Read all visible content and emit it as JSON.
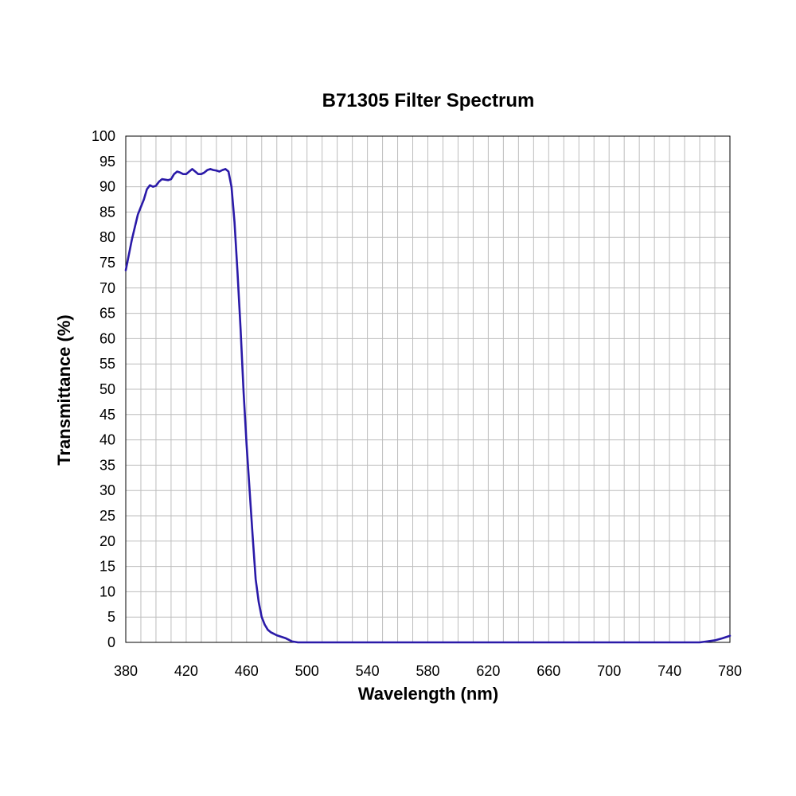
{
  "chart_data": {
    "type": "line",
    "title": "B71305 Filter  Spectrum",
    "xlabel": "Wavelength (nm)",
    "ylabel": "Transmittance (%)",
    "xlim": [
      380,
      780
    ],
    "ylim": [
      0,
      100
    ],
    "x_ticks": [
      380,
      420,
      460,
      500,
      540,
      580,
      620,
      660,
      700,
      740,
      780
    ],
    "y_ticks": [
      0,
      5,
      10,
      15,
      20,
      25,
      30,
      35,
      40,
      45,
      50,
      55,
      60,
      65,
      70,
      75,
      80,
      85,
      90,
      95,
      100
    ],
    "x_minor_step": 10,
    "grid": true,
    "line_color": "#2a1aa8",
    "series": [
      {
        "x": [
          380,
          382,
          384,
          386,
          388,
          390,
          392,
          394,
          396,
          398,
          400,
          402,
          404,
          406,
          408,
          410,
          412,
          414,
          416,
          418,
          420,
          422,
          424,
          426,
          428,
          430,
          432,
          434,
          436,
          438,
          440,
          442,
          444,
          446,
          448,
          450,
          452,
          454,
          456,
          458,
          460,
          462,
          464,
          466,
          468,
          470,
          472,
          474,
          476,
          478,
          480,
          482,
          484,
          486,
          488,
          490,
          492,
          494,
          496,
          498,
          500,
          502,
          505,
          510,
          515,
          520,
          525,
          530,
          535,
          540,
          560,
          600,
          640,
          680,
          695,
          700,
          705,
          710,
          720,
          740,
          760,
          765,
          770,
          775,
          780
        ],
        "y": [
          73.5,
          76.5,
          79.5,
          82.0,
          84.5,
          86.0,
          87.5,
          89.5,
          90.3,
          90.0,
          90.2,
          91.0,
          91.5,
          91.4,
          91.3,
          91.5,
          92.5,
          93.0,
          92.8,
          92.5,
          92.5,
          93.0,
          93.5,
          93.0,
          92.5,
          92.5,
          92.8,
          93.3,
          93.5,
          93.3,
          93.2,
          93.0,
          93.3,
          93.5,
          93.0,
          90.0,
          83.0,
          73.0,
          62.0,
          49.5,
          39.0,
          30.0,
          21.0,
          12.5,
          8.0,
          5.0,
          3.5,
          2.5,
          2.0,
          1.7,
          1.4,
          1.2,
          1.0,
          0.8,
          0.5,
          0.2,
          0.1,
          0.0,
          0.0,
          0.0,
          0.0,
          0.0,
          0.0,
          0.0,
          0.0,
          0.0,
          0.0,
          0.0,
          0.0,
          0.0,
          0.0,
          0.0,
          0.0,
          0.0,
          0.0,
          0.0,
          0.0,
          0.0,
          0.0,
          0.0,
          0.0,
          0.2,
          0.4,
          0.8,
          1.3
        ]
      }
    ]
  }
}
